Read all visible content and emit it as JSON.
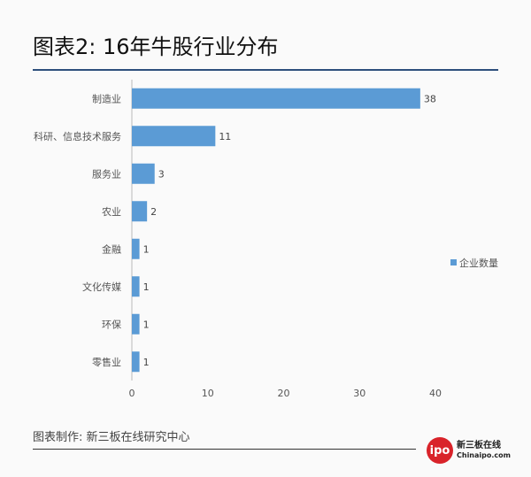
{
  "title": "图表2: 16年牛股行业分布",
  "footer": "图表制作: 新三板在线研究中心",
  "logo": {
    "mark": "ipo",
    "name": "新三板在线",
    "site": "Chinaipo.com"
  },
  "colors": {
    "bar": "#5b9bd5",
    "rule": "#2d4f7c"
  },
  "chart_data": {
    "type": "bar",
    "orientation": "horizontal",
    "categories": [
      "制造业",
      "科研、信息技术服务",
      "服务业",
      "农业",
      "金融",
      "文化传媒",
      "环保",
      "零售业"
    ],
    "values": [
      38,
      11,
      3,
      2,
      1,
      1,
      1,
      1
    ],
    "series": [
      {
        "name": "企业数量",
        "values": [
          38,
          11,
          3,
          2,
          1,
          1,
          1,
          1
        ]
      }
    ],
    "xticks": [
      0,
      10,
      20,
      30,
      40
    ],
    "xlim": [
      0,
      40
    ],
    "legend": "right",
    "grid": false
  }
}
